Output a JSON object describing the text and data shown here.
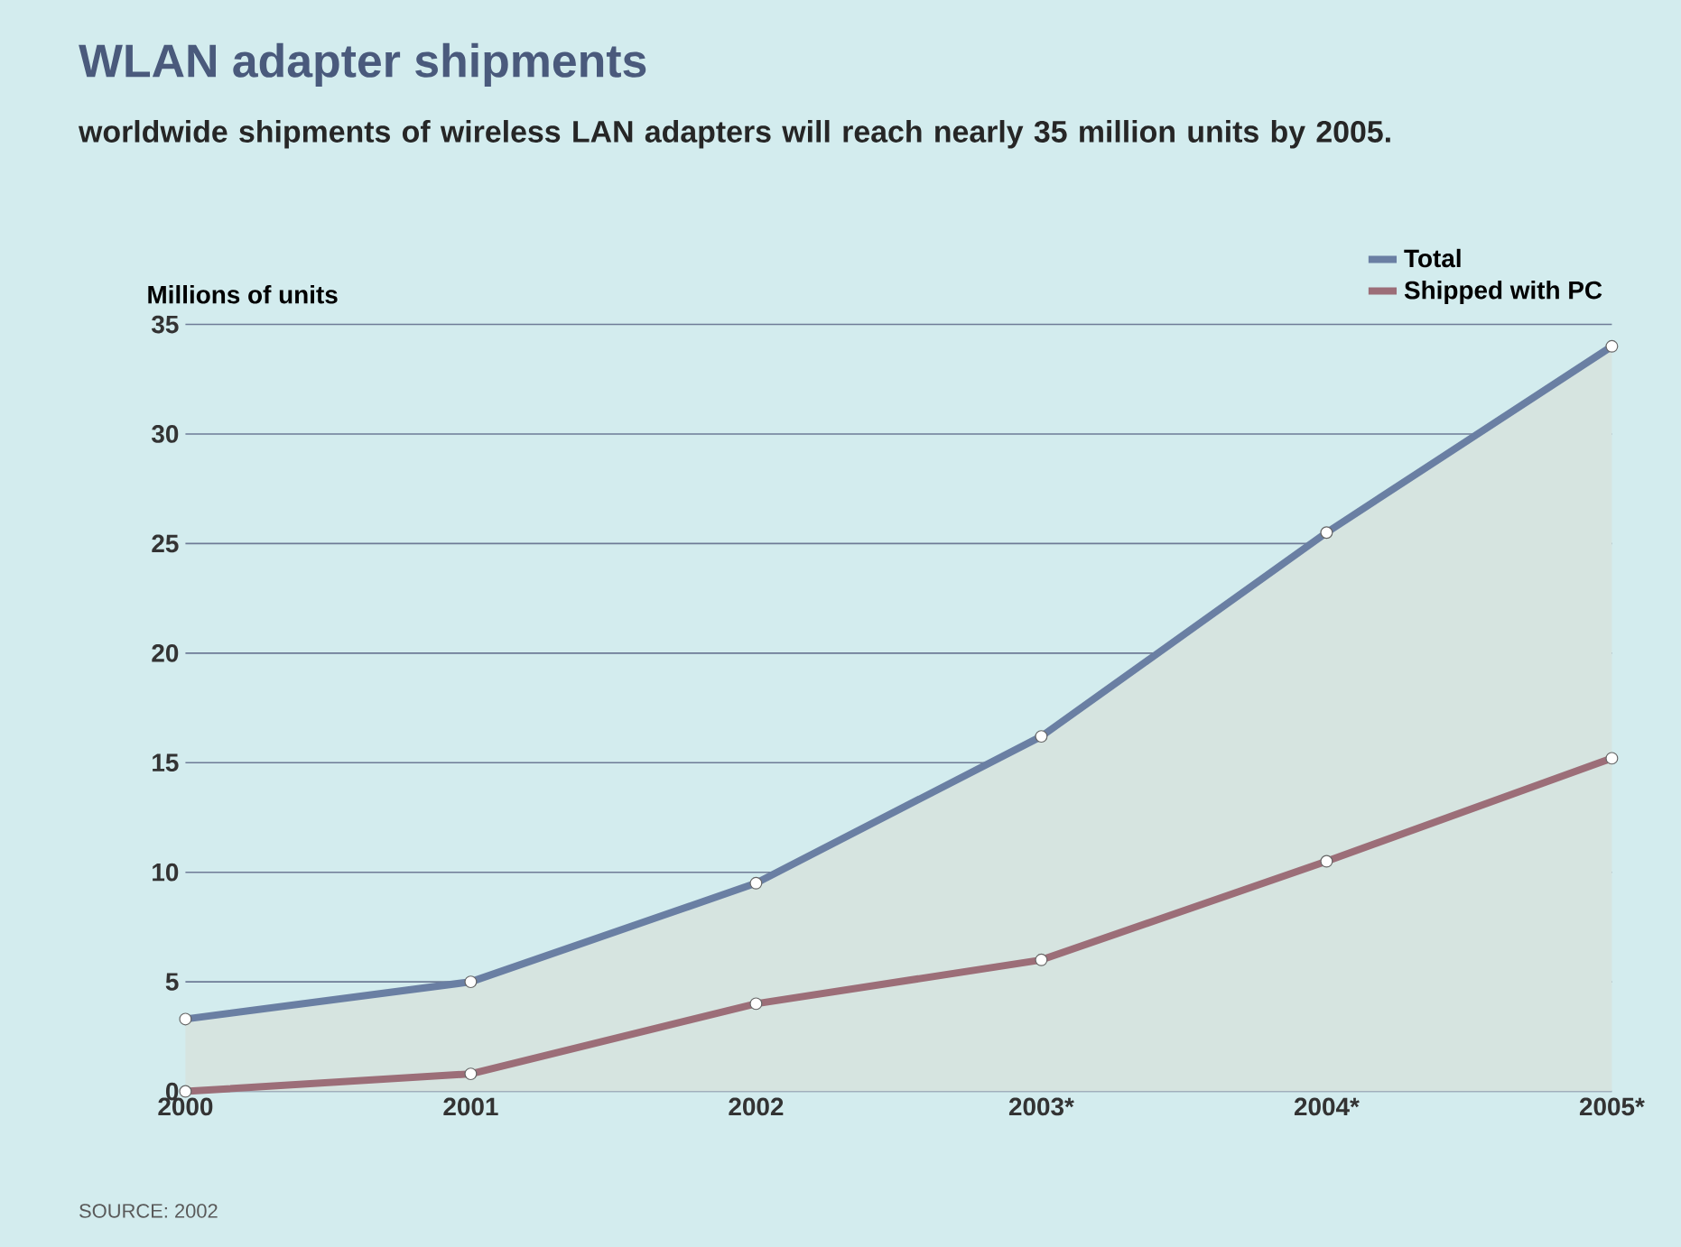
{
  "chart_data": {
    "type": "line",
    "title": "WLAN adapter shipments",
    "subtitle": "worldwide shipments of wireless LAN adapters will reach nearly 35 million units by 2005.",
    "ylabel": "Millions of units",
    "categories": [
      "2000",
      "2001",
      "2002",
      "2003*",
      "2004*",
      "2005*"
    ],
    "series": [
      {
        "name": "Total",
        "type": "area",
        "color": "#6a7fa3",
        "values": [
          3.3,
          5.0,
          9.5,
          16.2,
          25.5,
          34.0
        ]
      },
      {
        "name": "Shipped with PC",
        "color": "#9c6e78",
        "values": [
          0,
          0.8,
          4.0,
          6.0,
          10.5,
          15.2
        ]
      }
    ],
    "ylim": [
      0,
      35
    ],
    "yticks": [
      0,
      5,
      10,
      15,
      20,
      25,
      30,
      35
    ],
    "grid": "y",
    "legend": "top right",
    "marker": "circle",
    "line_style": "solid",
    "annotations": [
      "SOURCE: 2002"
    ]
  }
}
